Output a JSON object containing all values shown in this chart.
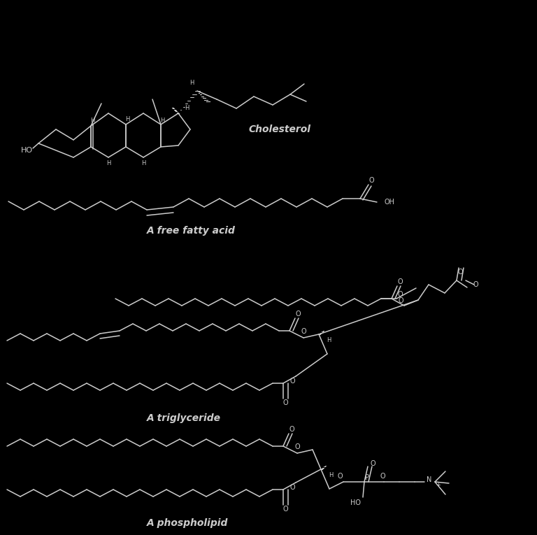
{
  "background_color": "#000000",
  "line_color": "#cccccc",
  "text_color": "#cccccc",
  "labels": {
    "cholesterol": "Cholesterol",
    "fatty_acid": "A free fatty acid",
    "triglyceride": "A triglyceride",
    "phospholipid": "A phospholipid"
  },
  "label_fontsize": 10,
  "fig_width": 7.68,
  "fig_height": 7.65,
  "dpi": 100,
  "lw": 1.1
}
